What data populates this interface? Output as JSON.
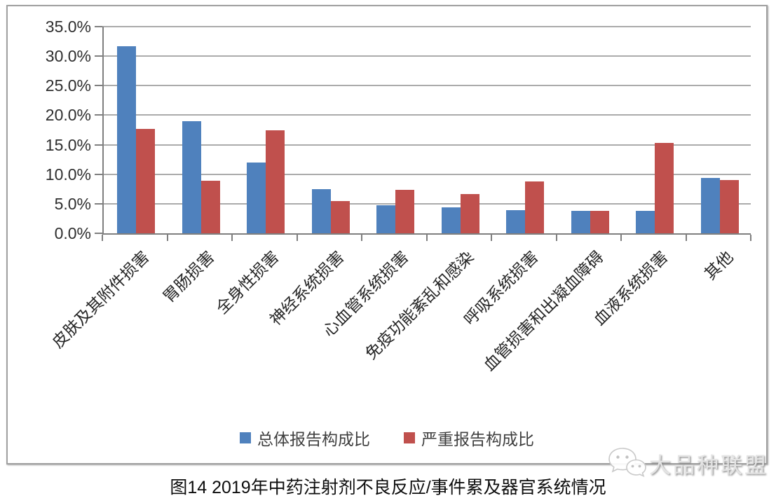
{
  "caption": "图14 2019年中药注射剂不良反应/事件累及器官系统情况",
  "watermark": {
    "text": "大品种联盟",
    "icon": "wechat-bubbles-icon"
  },
  "colors": {
    "series_total": "#4f81bd",
    "series_severe": "#c0504d",
    "gridline": "#ababab",
    "axis": "#7f7f7f",
    "frame_border": "#a0a0a0"
  },
  "chart_data": {
    "type": "bar",
    "title": "",
    "xlabel": "",
    "ylabel": "",
    "ylim": [
      0,
      35
    ],
    "ytick_step": 5,
    "ytick_labels": [
      "0.0%",
      "5.0%",
      "10.0%",
      "15.0%",
      "20.0%",
      "25.0%",
      "30.0%",
      "35.0%"
    ],
    "grid": true,
    "legend_position": "bottom",
    "categories": [
      "皮肤及其附件损害",
      "胃肠损害",
      "全身性损害",
      "神经系统损害",
      "心血管系统损害",
      "免疫功能紊乱和感染",
      "呼吸系统损害",
      "血管损害和出凝血障碍",
      "血液系统损害",
      "其他"
    ],
    "series": [
      {
        "name": "总体报告构成比",
        "color": "#4f81bd",
        "values": [
          31.7,
          19.0,
          12.0,
          7.5,
          4.7,
          4.4,
          3.9,
          3.8,
          3.8,
          9.4
        ]
      },
      {
        "name": "严重报告构成比",
        "color": "#c0504d",
        "values": [
          17.7,
          8.9,
          17.4,
          5.5,
          7.3,
          6.7,
          8.8,
          3.8,
          15.3,
          9.0
        ]
      }
    ]
  }
}
